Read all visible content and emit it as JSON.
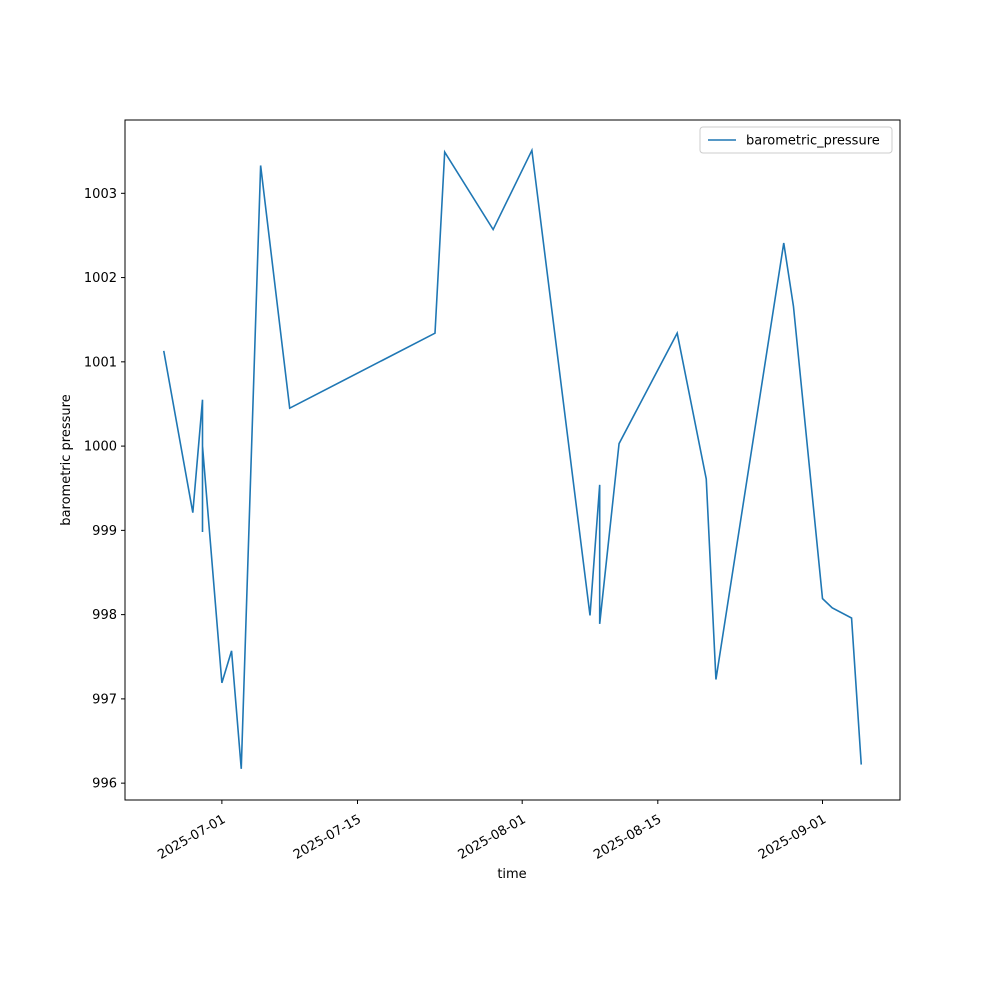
{
  "chart_data": {
    "type": "line",
    "x_label": "time",
    "y_label": "barometric pressure",
    "x": [
      "2025-06-25",
      "2025-06-28",
      "2025-06-29",
      "2025-06-29",
      "2025-06-29",
      "2025-07-01",
      "2025-07-02",
      "2025-07-03",
      "2025-07-05",
      "2025-07-08",
      "2025-07-23",
      "2025-07-24",
      "2025-07-29",
      "2025-08-02",
      "2025-08-08",
      "2025-08-09",
      "2025-08-09",
      "2025-08-11",
      "2025-08-17",
      "2025-08-20",
      "2025-08-21",
      "2025-08-28",
      "2025-08-29",
      "2025-09-01",
      "2025-09-02",
      "2025-09-04",
      "2025-09-05"
    ],
    "series": [
      {
        "name": "barometric_pressure",
        "color": "#1f77b4",
        "values": [
          1001.13,
          999.21,
          1000.55,
          998.98,
          1000.0,
          997.19,
          997.57,
          996.17,
          1003.33,
          1000.45,
          1001.34,
          1003.49,
          1002.57,
          1003.51,
          997.99,
          999.54,
          997.89,
          1000.03,
          1001.34,
          999.61,
          997.23,
          1002.41,
          1001.66,
          998.19,
          998.08,
          997.96,
          996.22
        ]
      }
    ],
    "xlim": [
      "2025-06-21",
      "2025-09-09"
    ],
    "xticks": [
      "2025-07-01",
      "2025-07-15",
      "2025-08-01",
      "2025-08-15",
      "2025-09-01"
    ],
    "ylim": [
      995.8,
      1003.87
    ],
    "yticks": [
      996,
      997,
      998,
      999,
      1000,
      1001,
      1002,
      1003
    ],
    "legend": "upper right"
  }
}
